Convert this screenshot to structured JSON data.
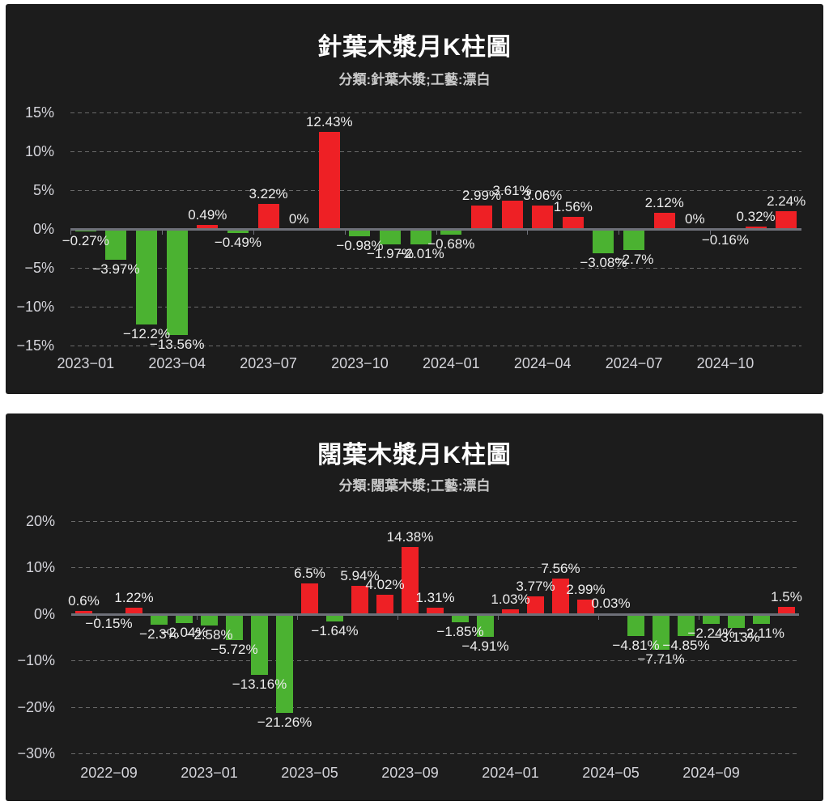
{
  "page": {
    "background": "#ffffff",
    "panel_background": "#1c1c1c"
  },
  "colors": {
    "up_bar": "#ee2025",
    "down_bar": "#4bb231",
    "gridline": "#6a6a6a",
    "axis_line": "#6e7079",
    "axis_text": "#d4d4da",
    "bar_label_text": "#ececec",
    "title_text": "#ffffff",
    "subtitle_text": "#c9c9c9"
  },
  "chart_data": [
    {
      "type": "bar",
      "title": "針葉木漿月K柱圖",
      "subtitle": "分類:針葉木漿;工藝:漂白",
      "grid": true,
      "legend": "none",
      "ylim": [
        -15,
        15
      ],
      "y_tick_values": [
        15,
        10,
        5,
        0,
        -5,
        -10,
        -15
      ],
      "y_tick_labels": [
        "15%",
        "10%",
        "5%",
        "0%",
        "−5%",
        "−10%",
        "−15%"
      ],
      "categories": [
        "2023-01",
        "2023-02",
        "2023-03",
        "2023-04",
        "2023-05",
        "2023-06",
        "2023-07",
        "2023-08",
        "2023-09",
        "2023-10",
        "2023-11",
        "2023-12",
        "2024-01",
        "2024-02",
        "2024-03",
        "2024-04",
        "2024-05",
        "2024-06",
        "2024-07",
        "2024-08",
        "2024-09",
        "2024-10",
        "2024-11",
        "2024-12"
      ],
      "values": [
        -0.27,
        -3.97,
        -12.2,
        -13.56,
        0.49,
        -0.49,
        3.22,
        0,
        12.43,
        -0.98,
        -1.97,
        -2.01,
        -0.68,
        2.99,
        3.61,
        3.06,
        1.56,
        -3.08,
        -2.7,
        2.12,
        0,
        -0.16,
        0.32,
        2.24
      ],
      "bar_labels": [
        "−0.27%",
        "−3.97%",
        "−12.2%",
        "−13.56%",
        "0.49%",
        "−0.49%",
        "3.22%",
        "0%",
        "12.43%",
        "−0.98%",
        "−1.97%",
        "−2.01%",
        "−0.68%",
        "2.99%",
        "3.61%",
        "3.06%",
        "1.56%",
        "−3.08%",
        "−2.7%",
        "2.12%",
        "0%",
        "−0.16%",
        "0.32%",
        "2.24%"
      ],
      "x_axis_labels": [
        {
          "index": 0,
          "label": "2023−01"
        },
        {
          "index": 3,
          "label": "2023−04"
        },
        {
          "index": 6,
          "label": "2023−07"
        },
        {
          "index": 9,
          "label": "2023−10"
        },
        {
          "index": 12,
          "label": "2024−01"
        },
        {
          "index": 15,
          "label": "2024−04"
        },
        {
          "index": 18,
          "label": "2024−07"
        },
        {
          "index": 21,
          "label": "2024−10"
        }
      ]
    },
    {
      "type": "bar",
      "title": "闊葉木漿月K柱圖",
      "subtitle": "分類:闊葉木漿;工藝:漂白",
      "grid": true,
      "legend": "none",
      "ylim": [
        -30,
        20
      ],
      "y_tick_values": [
        20,
        10,
        0,
        -10,
        -20,
        -30
      ],
      "y_tick_labels": [
        "20%",
        "10%",
        "0%",
        "−10%",
        "−20%",
        "−30%"
      ],
      "categories": [
        "2022-08",
        "2022-09",
        "2022-10",
        "2022-11",
        "2022-12",
        "2023-01",
        "2023-02",
        "2023-03",
        "2023-04",
        "2023-05",
        "2023-06",
        "2023-07",
        "2023-08",
        "2023-09",
        "2023-10",
        "2023-11",
        "2023-12",
        "2024-01",
        "2024-02",
        "2024-03",
        "2024-04",
        "2024-05",
        "2024-06",
        "2024-07",
        "2024-08",
        "2024-09",
        "2024-10",
        "2024-11",
        "2024-12"
      ],
      "values": [
        0.6,
        -0.15,
        1.22,
        -2.3,
        -2.04,
        -2.58,
        -5.72,
        -13.16,
        -21.26,
        6.5,
        -1.64,
        5.94,
        4.02,
        14.38,
        1.31,
        -1.85,
        -4.91,
        1.03,
        3.77,
        7.56,
        2.99,
        0.03,
        -4.81,
        -7.71,
        -4.85,
        -2.24,
        -3.13,
        -2.11,
        1.5
      ],
      "bar_labels": [
        "0.6%",
        "−0.15%",
        "1.22%",
        "−2.3%",
        "−2.04%",
        "−2.58%",
        "−5.72%",
        "−13.16%",
        "−21.26%",
        "6.5%",
        "−1.64%",
        "5.94%",
        "4.02%",
        "14.38%",
        "1.31%",
        "−1.85%",
        "−4.91%",
        "1.03%",
        "3.77%",
        "7.56%",
        "2.99%",
        "0.03%",
        "−4.81%",
        "−7.71%",
        "−4.85%",
        "−2.24%",
        "−3.13%",
        "−2.11%",
        "1.5%"
      ],
      "x_axis_labels": [
        {
          "index": 1,
          "label": "2022−09"
        },
        {
          "index": 5,
          "label": "2023−01"
        },
        {
          "index": 9,
          "label": "2023−05"
        },
        {
          "index": 13,
          "label": "2023−09"
        },
        {
          "index": 17,
          "label": "2024−01"
        },
        {
          "index": 21,
          "label": "2024−05"
        },
        {
          "index": 25,
          "label": "2024−09"
        }
      ]
    }
  ]
}
